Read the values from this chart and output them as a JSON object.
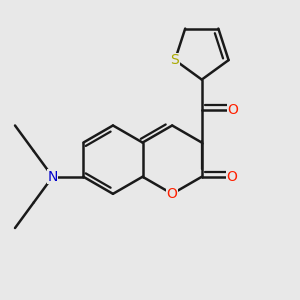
{
  "bg_color": "#e8e8e8",
  "bond_color": "#1a1a1a",
  "bond_width": 1.8,
  "atom_colors": {
    "O": "#ff2000",
    "N": "#0000cc",
    "S": "#aaaa00"
  },
  "font_size_atom": 10
}
